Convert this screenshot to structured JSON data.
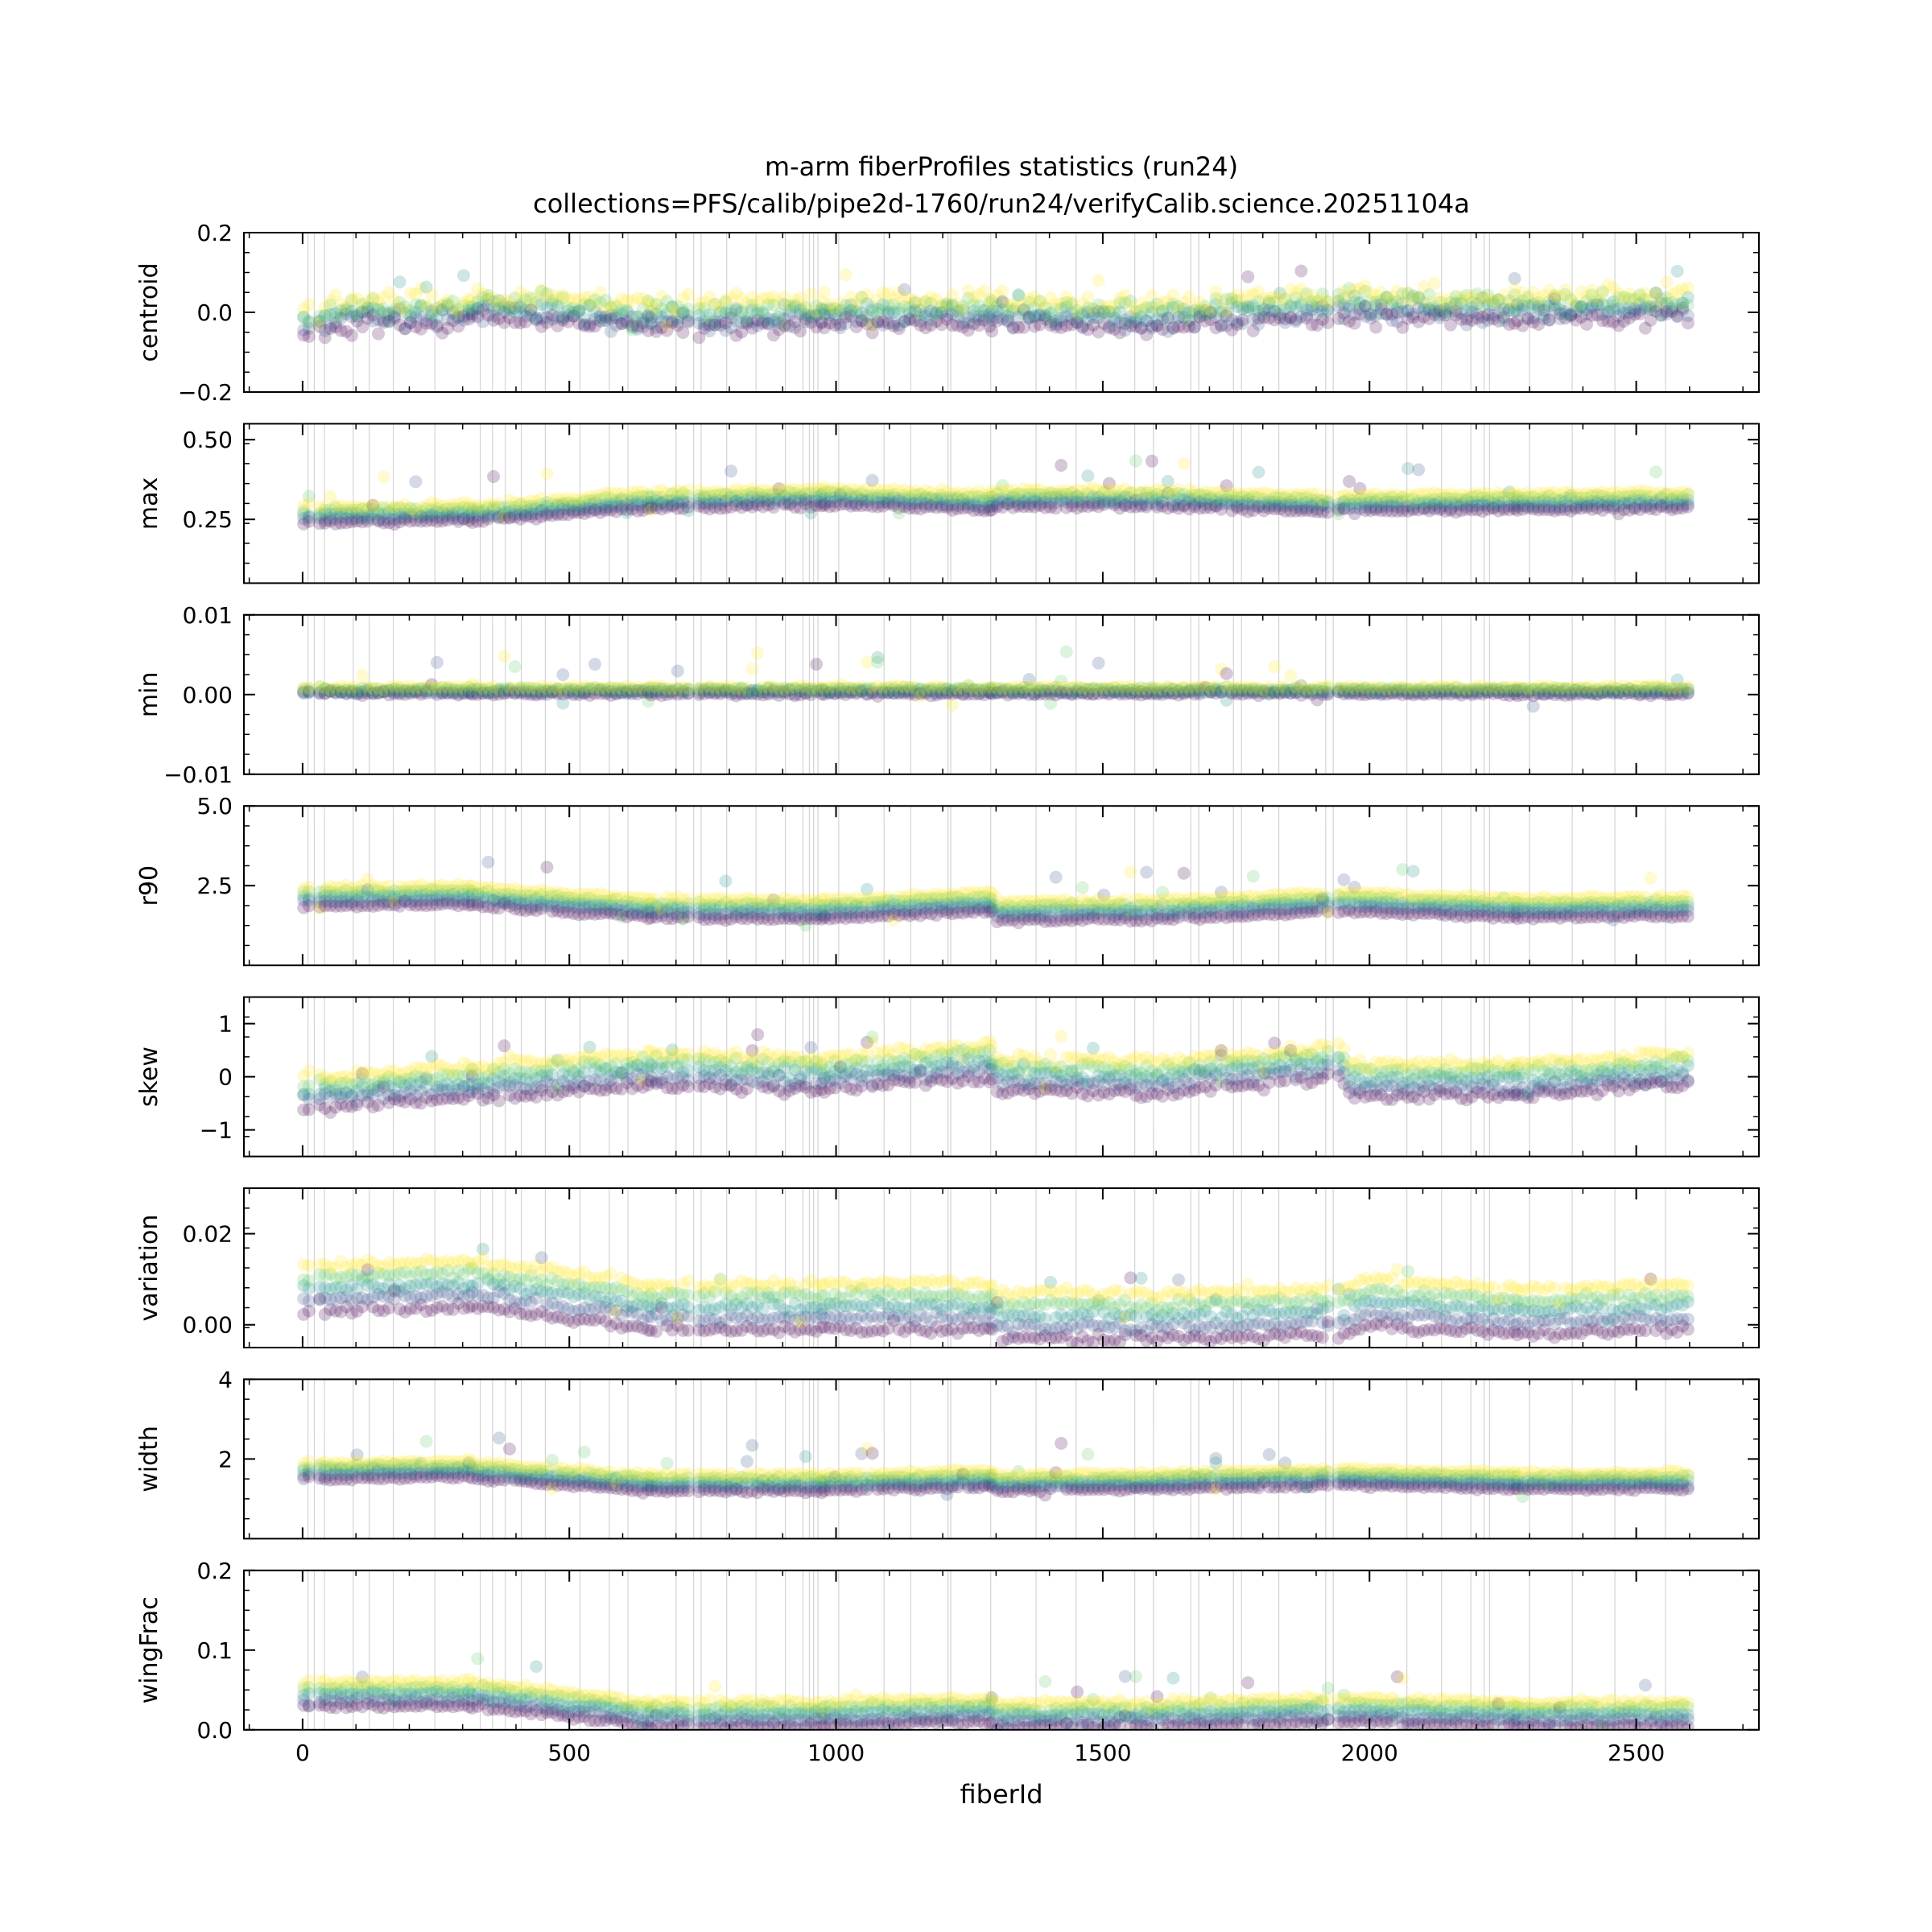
{
  "title_line1": "m-arm fiberProfiles statistics (run24)",
  "title_line2": "collections=PFS/calib/pipe2d-1760/run24/verifyCalib.science.20251104a",
  "colors": [
    "#440154",
    "#3b528b",
    "#21918c",
    "#5ec962",
    "#fde725"
  ],
  "chart_data": {
    "type": "scatter",
    "xlabel": "fiberId",
    "xlim": [
      -110,
      2730
    ],
    "xticks": [
      0,
      500,
      1000,
      1500,
      2000,
      2500
    ],
    "xtick_labels": [
      "0",
      "500",
      "1000",
      "1500",
      "2000",
      "2500"
    ],
    "segment_breaks": [
      0,
      316,
      651,
      976,
      1290,
      1620,
      1950,
      2275,
      2604
    ],
    "dead_fibers": [
      10,
      22,
      41,
      95,
      125,
      170,
      248,
      333,
      356,
      380,
      410,
      455,
      520,
      575,
      610,
      700,
      733,
      747,
      795,
      850,
      905,
      938,
      950,
      958,
      966,
      1005,
      1090,
      1140,
      1210,
      1215,
      1290,
      1375,
      1450,
      1560,
      1595,
      1665,
      1680,
      1745,
      1760,
      1830,
      1918,
      1932,
      2070,
      2135,
      2190,
      2215,
      2225,
      2300,
      2380,
      2460,
      2555
    ],
    "panels": [
      {
        "ylabel": "centroid",
        "ylim": [
          -0.2,
          0.2
        ],
        "yticks": [
          -0.2,
          0.0,
          0.2
        ],
        "ytick_labels": [
          "−0.2",
          "0.0",
          "0.2"
        ],
        "base": [
          [
            0,
            -0.03
          ],
          [
            100,
            0.0
          ],
          [
            316,
            0.0
          ],
          [
            330,
            0.02
          ],
          [
            651,
            -0.01
          ],
          [
            976,
            0.0
          ],
          [
            1290,
            0.0
          ],
          [
            1620,
            -0.01
          ],
          [
            1950,
            0.02
          ],
          [
            2275,
            0.01
          ],
          [
            2604,
            0.02
          ]
        ],
        "spread": 0.03,
        "noise": 0.02
      },
      {
        "ylabel": "max",
        "ylim": [
          0.05,
          0.55
        ],
        "yticks": [
          0.25,
          0.5
        ],
        "ytick_labels": [
          "0.25",
          "0.50"
        ],
        "base": [
          [
            0,
            0.265
          ],
          [
            316,
            0.27
          ],
          [
            330,
            0.27
          ],
          [
            651,
            0.31
          ],
          [
            976,
            0.32
          ],
          [
            1290,
            0.305
          ],
          [
            1300,
            0.315
          ],
          [
            1620,
            0.315
          ],
          [
            1900,
            0.3
          ],
          [
            1950,
            0.3
          ],
          [
            2604,
            0.31
          ]
        ],
        "spread": 0.025,
        "noise": 0.006
      },
      {
        "ylabel": "min",
        "ylim": [
          -0.01,
          0.01
        ],
        "yticks": [
          -0.01,
          0.0,
          0.01
        ],
        "ytick_labels": [
          "−0.01",
          "0.00",
          "0.01"
        ],
        "base": [
          [
            0,
            0.0005
          ],
          [
            2604,
            0.0005
          ]
        ],
        "spread": 0.0004,
        "noise": 0.0002
      },
      {
        "ylabel": "r90",
        "ylim": [
          0.0,
          5.0
        ],
        "yticks": [
          2.5,
          5.0
        ],
        "ytick_labels": [
          "2.5",
          "5.0"
        ],
        "base": [
          [
            0,
            2.15
          ],
          [
            316,
            2.2
          ],
          [
            330,
            2.15
          ],
          [
            651,
            1.8
          ],
          [
            976,
            1.75
          ],
          [
            1290,
            2.0
          ],
          [
            1300,
            1.7
          ],
          [
            1620,
            1.75
          ],
          [
            1950,
            2.0
          ],
          [
            2275,
            1.8
          ],
          [
            2604,
            1.85
          ]
        ],
        "spread": 0.3,
        "noise": 0.05
      },
      {
        "ylabel": "skew",
        "ylim": [
          -1.5,
          1.5
        ],
        "yticks": [
          -1,
          0,
          1
        ],
        "ytick_labels": [
          "−1",
          "0",
          "1"
        ],
        "base": [
          [
            0,
            -0.3
          ],
          [
            316,
            -0.1
          ],
          [
            330,
            -0.1
          ],
          [
            651,
            0.15
          ],
          [
            976,
            0.05
          ],
          [
            1290,
            0.3
          ],
          [
            1300,
            0.05
          ],
          [
            1620,
            0.0
          ],
          [
            1950,
            0.3
          ],
          [
            1960,
            -0.05
          ],
          [
            2275,
            -0.05
          ],
          [
            2604,
            0.15
          ]
        ],
        "spread": 0.3,
        "noise": 0.08
      },
      {
        "ylabel": "variation",
        "ylim": [
          -0.005,
          0.03
        ],
        "yticks": [
          0.0,
          0.02
        ],
        "ytick_labels": [
          "0.00",
          "0.02"
        ],
        "base": [
          [
            0,
            0.008
          ],
          [
            316,
            0.009
          ],
          [
            330,
            0.009
          ],
          [
            600,
            0.005
          ],
          [
            651,
            0.004
          ],
          [
            976,
            0.004
          ],
          [
            1290,
            0.004
          ],
          [
            1300,
            0.002
          ],
          [
            1620,
            0.002
          ],
          [
            1950,
            0.003
          ],
          [
            2000,
            0.005
          ],
          [
            2275,
            0.003
          ],
          [
            2604,
            0.004
          ]
        ],
        "spread": 0.005,
        "noise": 0.0008
      },
      {
        "ylabel": "width",
        "ylim": [
          0.0,
          4.0
        ],
        "yticks": [
          2,
          4
        ],
        "ytick_labels": [
          "2",
          "4"
        ],
        "base": [
          [
            0,
            1.7
          ],
          [
            316,
            1.75
          ],
          [
            330,
            1.7
          ],
          [
            651,
            1.4
          ],
          [
            976,
            1.4
          ],
          [
            1290,
            1.5
          ],
          [
            1300,
            1.4
          ],
          [
            1620,
            1.45
          ],
          [
            1950,
            1.55
          ],
          [
            2275,
            1.45
          ],
          [
            2604,
            1.45
          ]
        ],
        "spread": 0.2,
        "noise": 0.04
      },
      {
        "ylabel": "wingFrac",
        "ylim": [
          0.0,
          0.2
        ],
        "yticks": [
          0.0,
          0.1,
          0.2
        ],
        "ytick_labels": [
          "0.0",
          "0.1",
          "0.2"
        ],
        "base": [
          [
            0,
            0.045
          ],
          [
            316,
            0.045
          ],
          [
            330,
            0.045
          ],
          [
            651,
            0.02
          ],
          [
            976,
            0.02
          ],
          [
            1290,
            0.025
          ],
          [
            1300,
            0.018
          ],
          [
            1620,
            0.02
          ],
          [
            1950,
            0.025
          ],
          [
            2275,
            0.02
          ],
          [
            2604,
            0.02
          ]
        ],
        "spread": 0.015,
        "noise": 0.003
      }
    ]
  }
}
